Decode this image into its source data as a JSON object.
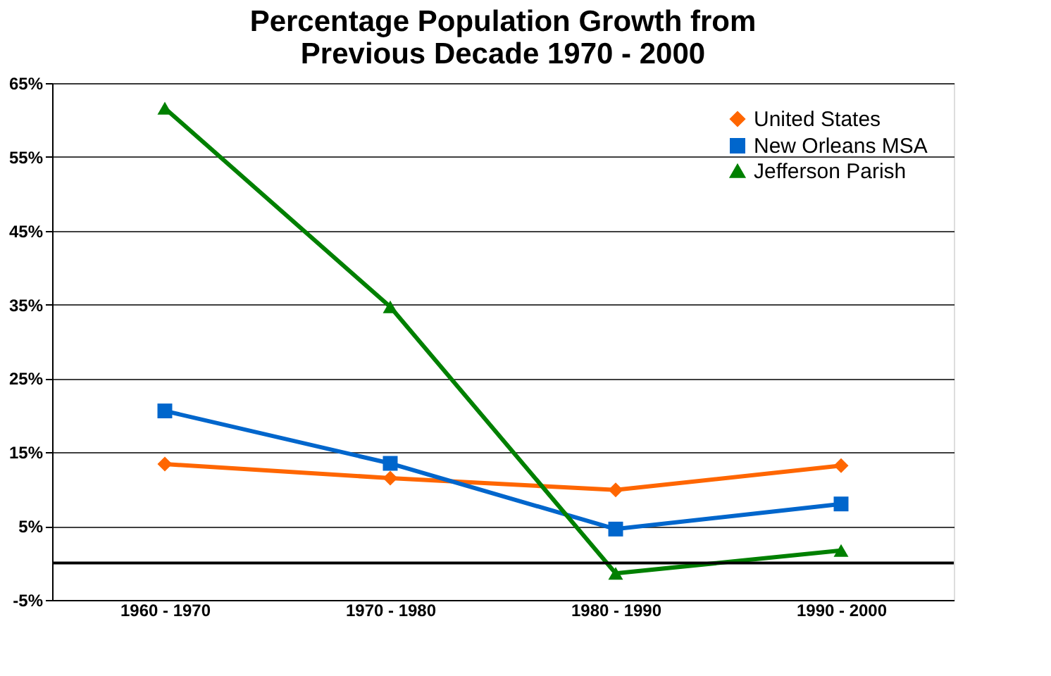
{
  "chart_data": {
    "type": "line",
    "title": [
      "Percentage Population Growth from",
      "Previous Decade 1970 - 2000"
    ],
    "categories": [
      "1960 - 1970",
      "1970 - 1980",
      "1980 - 1990",
      "1990 - 2000"
    ],
    "series": [
      {
        "name": "United States",
        "color": "#ff6600",
        "marker": "diamond",
        "values": [
          13.4,
          11.5,
          9.9,
          13.2
        ]
      },
      {
        "name": "New Orleans MSA",
        "color": "#0066cc",
        "marker": "square",
        "values": [
          20.6,
          13.5,
          4.6,
          8.0
        ]
      },
      {
        "name": "Jefferson Parish",
        "color": "#008000",
        "marker": "triangle",
        "values": [
          61.6,
          34.7,
          -1.4,
          1.7
        ]
      }
    ],
    "ylim": [
      -5,
      65
    ],
    "yticks": [
      {
        "value": -5,
        "label": "-5%"
      },
      {
        "value": 5,
        "label": "5%"
      },
      {
        "value": 15,
        "label": "15%"
      },
      {
        "value": 25,
        "label": "25%"
      },
      {
        "value": 35,
        "label": "35%"
      },
      {
        "value": 45,
        "label": "45%"
      },
      {
        "value": 55,
        "label": "55%"
      },
      {
        "value": 65,
        "label": "65%"
      }
    ],
    "ref_lines": [
      {
        "axis": "y",
        "value": 0,
        "color": "#000000"
      }
    ],
    "grid": "y",
    "legend": "top right",
    "line_style": "solid"
  }
}
